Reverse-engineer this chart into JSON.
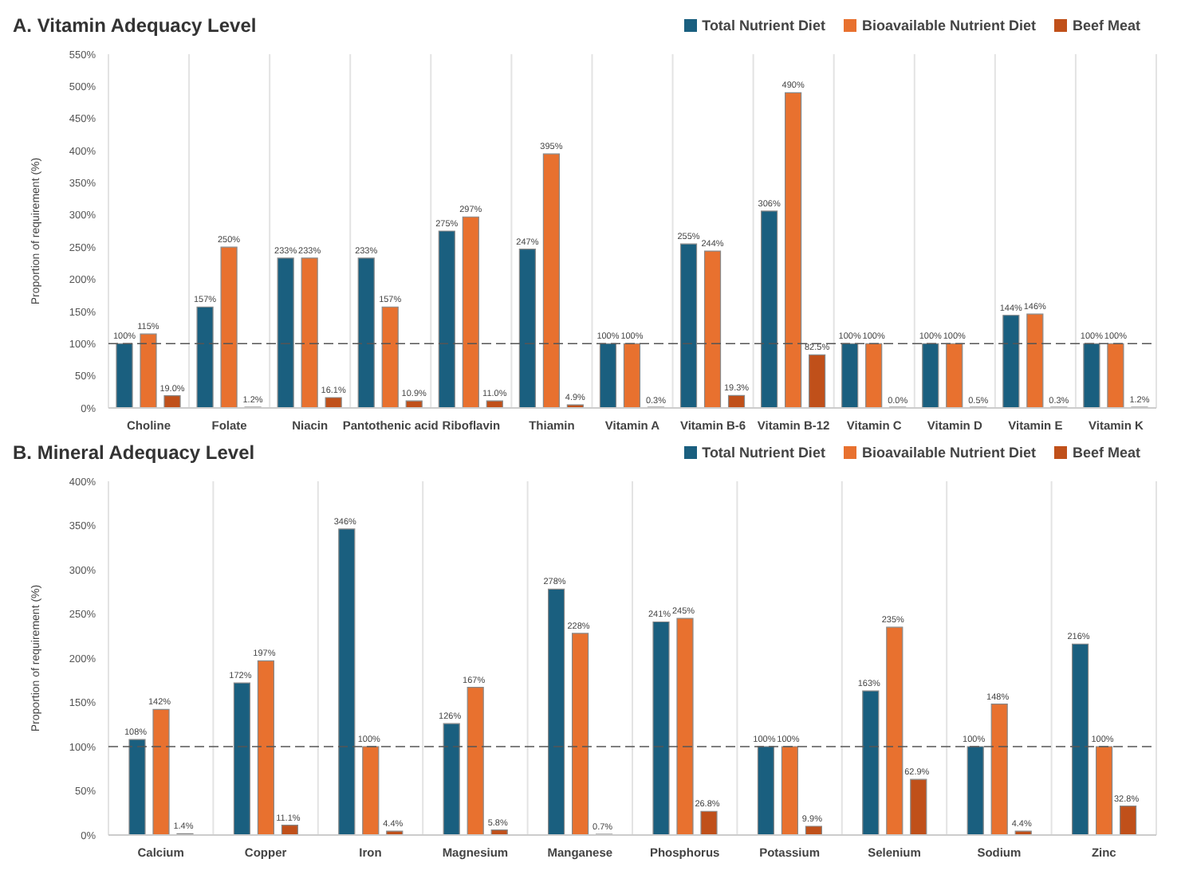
{
  "chart_data": [
    {
      "type": "bar",
      "title": "A. Vitamin Adequacy Level",
      "ylabel": "Proportion of requirement (%)",
      "categories": [
        "Choline",
        "Folate",
        "Niacin",
        "Pantothenic acid",
        "Riboflavin",
        "Thiamin",
        "Vitamin A",
        "Vitamin B-6",
        "Vitamin B-12",
        "Vitamin C",
        "Vitamin D",
        "Vitamin E",
        "Vitamin K"
      ],
      "series": [
        {
          "name": "Total  Nutrient Diet",
          "color": "#1a5f7f",
          "values": [
            100,
            157,
            233,
            233,
            275,
            247,
            100,
            255,
            306,
            100,
            100,
            144,
            100
          ],
          "value_labels": [
            "100%",
            "157%",
            "233%",
            "233%",
            "275%",
            "247%",
            "100%",
            "255%",
            "306%",
            "100%",
            "100%",
            "144%",
            "100%"
          ]
        },
        {
          "name": "Bioavailable Nutrient Diet",
          "color": "#e8712f",
          "values": [
            115,
            250,
            233,
            157,
            297,
            395,
            100,
            244,
            490,
            100,
            100,
            146,
            100
          ],
          "value_labels": [
            "115%",
            "250%",
            "233%",
            "157%",
            "297%",
            "395%",
            "100%",
            "244%",
            "490%",
            "100%",
            "100%",
            "146%",
            "100%"
          ]
        },
        {
          "name": "Beef Meat",
          "color": "#c0501a",
          "values": [
            19.0,
            1.2,
            16.1,
            10.9,
            11.0,
            4.9,
            0.3,
            19.3,
            82.5,
            0.0,
            0.5,
            0.3,
            1.2
          ],
          "value_labels": [
            "19.0%",
            "1.2%",
            "16.1%",
            "10.9%",
            "11.0%",
            "4.9%",
            "0.3%",
            "19.3%",
            "82.5%",
            "0.0%",
            "0.5%",
            "0.3%",
            "1.2%"
          ]
        }
      ],
      "ylim": [
        0,
        550
      ],
      "yticks": [
        {
          "value": 0,
          "label": "0%"
        },
        {
          "value": 50,
          "label": "50%"
        },
        {
          "value": 100,
          "label": "100%"
        },
        {
          "value": 150,
          "label": "150%"
        },
        {
          "value": 200,
          "label": "200%"
        },
        {
          "value": 250,
          "label": "250%"
        },
        {
          "value": 300,
          "label": "300%"
        },
        {
          "value": 350,
          "label": "350%"
        },
        {
          "value": 400,
          "label": "400%"
        },
        {
          "value": 450,
          "label": "450%"
        },
        {
          "value": 500,
          "label": "500%"
        },
        {
          "value": 550,
          "label": "550%"
        }
      ],
      "ref_lines": [
        {
          "axis": "y",
          "value": 100,
          "color": "#555555",
          "line_style": "dashed"
        }
      ],
      "legend": "top right",
      "grid": "x"
    },
    {
      "type": "bar",
      "title": "B. Mineral Adequacy Level",
      "ylabel": "Proportion of requirement (%)",
      "categories": [
        "Calcium",
        "Copper",
        "Iron",
        "Magnesium",
        "Manganese",
        "Phosphorus",
        "Potassium",
        "Selenium",
        "Sodium",
        "Zinc"
      ],
      "series": [
        {
          "name": "Total  Nutrient Diet",
          "color": "#1a5f7f",
          "values": [
            108,
            172,
            346,
            126,
            278,
            241,
            100,
            163,
            100,
            216
          ],
          "value_labels": [
            "108%",
            "172%",
            "346%",
            "126%",
            "278%",
            "241%",
            "100%",
            "163%",
            "100%",
            "216%"
          ]
        },
        {
          "name": "Bioavailable Nutrient Diet",
          "color": "#e8712f",
          "values": [
            142,
            197,
            100,
            167,
            228,
            245,
            100,
            235,
            148,
            100
          ],
          "value_labels": [
            "142%",
            "197%",
            "100%",
            "167%",
            "228%",
            "245%",
            "100%",
            "235%",
            "148%",
            "100%"
          ]
        },
        {
          "name": "Beef Meat",
          "color": "#c0501a",
          "values": [
            1.4,
            11.1,
            4.4,
            5.8,
            0.7,
            26.8,
            9.9,
            62.9,
            4.4,
            32.8
          ],
          "value_labels": [
            "1.4%",
            "11.1%",
            "4.4%",
            "5.8%",
            "0.7%",
            "26.8%",
            "9.9%",
            "62.9%",
            "4.4%",
            "32.8%"
          ]
        }
      ],
      "ylim": [
        0,
        400
      ],
      "yticks": [
        {
          "value": 0,
          "label": "0%"
        },
        {
          "value": 50,
          "label": "50%"
        },
        {
          "value": 100,
          "label": "100%"
        },
        {
          "value": 150,
          "label": "150%"
        },
        {
          "value": 200,
          "label": "200%"
        },
        {
          "value": 250,
          "label": "250%"
        },
        {
          "value": 300,
          "label": "300%"
        },
        {
          "value": 350,
          "label": "350%"
        },
        {
          "value": 400,
          "label": "400%"
        }
      ],
      "ref_lines": [
        {
          "axis": "y",
          "value": 100,
          "color": "#555555",
          "line_style": "dashed"
        }
      ],
      "legend": "top right",
      "grid": "x"
    }
  ]
}
